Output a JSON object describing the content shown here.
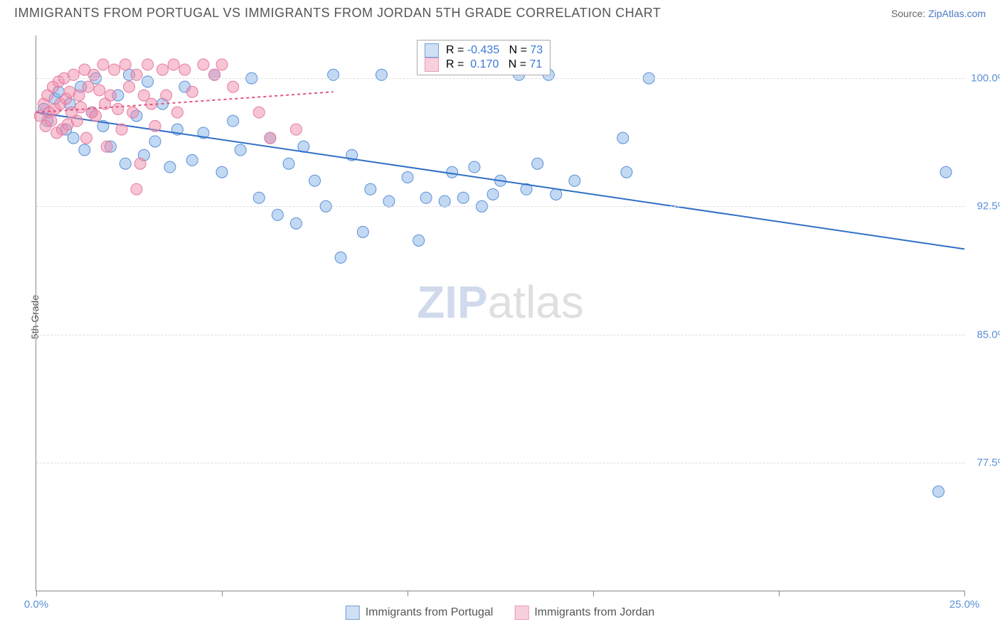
{
  "title": "IMMIGRANTS FROM PORTUGAL VS IMMIGRANTS FROM JORDAN 5TH GRADE CORRELATION CHART",
  "source_prefix": "Source: ",
  "source_link": "ZipAtlas.com",
  "ylabel": "5th Grade",
  "watermark_a": "ZIP",
  "watermark_b": "atlas",
  "chart": {
    "type": "scatter",
    "xlim": [
      0,
      25
    ],
    "ylim": [
      70,
      102.5
    ],
    "xticks": [
      0,
      5,
      10,
      15,
      20,
      25
    ],
    "xtick_labels_shown": {
      "0": "0.0%",
      "25": "25.0%"
    },
    "yticks": [
      77.5,
      85.0,
      92.5,
      100.0
    ],
    "ytick_labels": [
      "77.5%",
      "85.0%",
      "92.5%",
      "100.0%"
    ],
    "grid_color": "#dddddd",
    "axis_color": "#888888",
    "background_color": "#ffffff",
    "series": [
      {
        "name": "Immigrants from Portugal",
        "marker_color_fill": "rgba(120,170,230,0.45)",
        "marker_color_stroke": "#5b8fd6",
        "marker_radius": 8,
        "swatch_fill": "#cfe0f5",
        "swatch_border": "#6fa0d8",
        "trend": {
          "x1": 0,
          "y1": 98.0,
          "x2": 25,
          "y2": 90.0,
          "color": "#2f6fc7",
          "width": 2,
          "dash": "none"
        },
        "R": "-0.435",
        "N": "73",
        "points": [
          [
            0.2,
            98.2
          ],
          [
            0.3,
            97.5
          ],
          [
            0.5,
            98.8
          ],
          [
            0.6,
            99.2
          ],
          [
            0.8,
            97.0
          ],
          [
            0.9,
            98.5
          ],
          [
            1.0,
            96.5
          ],
          [
            1.2,
            99.5
          ],
          [
            1.3,
            95.8
          ],
          [
            1.5,
            98.0
          ],
          [
            1.6,
            100.0
          ],
          [
            1.8,
            97.2
          ],
          [
            2.0,
            96.0
          ],
          [
            2.2,
            99.0
          ],
          [
            2.4,
            95.0
          ],
          [
            2.5,
            100.2
          ],
          [
            2.7,
            97.8
          ],
          [
            2.9,
            95.5
          ],
          [
            3.0,
            99.8
          ],
          [
            3.2,
            96.3
          ],
          [
            3.4,
            98.5
          ],
          [
            3.6,
            94.8
          ],
          [
            3.8,
            97.0
          ],
          [
            4.0,
            99.5
          ],
          [
            4.2,
            95.2
          ],
          [
            4.5,
            96.8
          ],
          [
            4.8,
            100.2
          ],
          [
            5.0,
            94.5
          ],
          [
            5.3,
            97.5
          ],
          [
            5.5,
            95.8
          ],
          [
            5.8,
            100.0
          ],
          [
            6.0,
            93.0
          ],
          [
            6.3,
            96.5
          ],
          [
            6.5,
            92.0
          ],
          [
            6.8,
            95.0
          ],
          [
            7.0,
            91.5
          ],
          [
            7.2,
            96.0
          ],
          [
            7.5,
            94.0
          ],
          [
            7.8,
            92.5
          ],
          [
            8.0,
            100.2
          ],
          [
            8.2,
            89.5
          ],
          [
            8.5,
            95.5
          ],
          [
            8.8,
            91.0
          ],
          [
            9.0,
            93.5
          ],
          [
            9.3,
            100.2
          ],
          [
            9.5,
            92.8
          ],
          [
            10.0,
            94.2
          ],
          [
            10.3,
            90.5
          ],
          [
            10.5,
            93.0
          ],
          [
            11.0,
            92.8
          ],
          [
            11.2,
            94.5
          ],
          [
            11.5,
            93.0
          ],
          [
            11.8,
            94.8
          ],
          [
            12.0,
            92.5
          ],
          [
            12.3,
            93.2
          ],
          [
            12.5,
            94.0
          ],
          [
            13.0,
            100.2
          ],
          [
            13.2,
            93.5
          ],
          [
            13.5,
            95.0
          ],
          [
            13.8,
            100.2
          ],
          [
            14.0,
            93.2
          ],
          [
            14.5,
            94.0
          ],
          [
            15.8,
            96.5
          ],
          [
            15.9,
            94.5
          ],
          [
            16.5,
            100.0
          ],
          [
            24.3,
            75.8
          ],
          [
            24.5,
            94.5
          ]
        ]
      },
      {
        "name": "Immigrants from Jordan",
        "marker_color_fill": "rgba(240,140,170,0.5)",
        "marker_color_stroke": "#e67aa0",
        "marker_radius": 8,
        "swatch_fill": "#f7d0de",
        "swatch_border": "#e89ab5",
        "trend": {
          "x1": 0,
          "y1": 98.0,
          "x2": 8,
          "y2": 99.2,
          "color": "#e05582",
          "width": 2,
          "dash": "4,4"
        },
        "R": "0.170",
        "N": "71",
        "points": [
          [
            0.1,
            97.8
          ],
          [
            0.2,
            98.5
          ],
          [
            0.25,
            97.2
          ],
          [
            0.3,
            99.0
          ],
          [
            0.35,
            98.0
          ],
          [
            0.4,
            97.5
          ],
          [
            0.45,
            99.5
          ],
          [
            0.5,
            98.2
          ],
          [
            0.55,
            96.8
          ],
          [
            0.6,
            99.8
          ],
          [
            0.65,
            98.5
          ],
          [
            0.7,
            97.0
          ],
          [
            0.75,
            100.0
          ],
          [
            0.8,
            98.8
          ],
          [
            0.85,
            97.3
          ],
          [
            0.9,
            99.2
          ],
          [
            0.95,
            98.0
          ],
          [
            1.0,
            100.2
          ],
          [
            1.1,
            97.5
          ],
          [
            1.15,
            99.0
          ],
          [
            1.2,
            98.3
          ],
          [
            1.3,
            100.5
          ],
          [
            1.35,
            96.5
          ],
          [
            1.4,
            99.5
          ],
          [
            1.5,
            98.0
          ],
          [
            1.55,
            100.2
          ],
          [
            1.6,
            97.8
          ],
          [
            1.7,
            99.3
          ],
          [
            1.8,
            100.8
          ],
          [
            1.85,
            98.5
          ],
          [
            1.9,
            96.0
          ],
          [
            2.0,
            99.0
          ],
          [
            2.1,
            100.5
          ],
          [
            2.2,
            98.2
          ],
          [
            2.3,
            97.0
          ],
          [
            2.4,
            100.8
          ],
          [
            2.5,
            99.5
          ],
          [
            2.6,
            98.0
          ],
          [
            2.7,
            100.2
          ],
          [
            2.8,
            95.0
          ],
          [
            2.9,
            99.0
          ],
          [
            3.0,
            100.8
          ],
          [
            3.1,
            98.5
          ],
          [
            3.2,
            97.2
          ],
          [
            3.4,
            100.5
          ],
          [
            3.5,
            99.0
          ],
          [
            3.7,
            100.8
          ],
          [
            3.8,
            98.0
          ],
          [
            4.0,
            100.5
          ],
          [
            4.2,
            99.2
          ],
          [
            4.5,
            100.8
          ],
          [
            4.8,
            100.2
          ],
          [
            5.0,
            100.8
          ],
          [
            5.3,
            99.5
          ],
          [
            2.7,
            93.5
          ],
          [
            6.0,
            98.0
          ],
          [
            6.3,
            96.5
          ],
          [
            7.0,
            97.0
          ]
        ]
      }
    ],
    "legend_top": {
      "R_label": "R = ",
      "N_label": "N = "
    },
    "legend_bottom_labels": [
      "Immigrants from Portugal",
      "Immigrants from Jordan"
    ]
  }
}
